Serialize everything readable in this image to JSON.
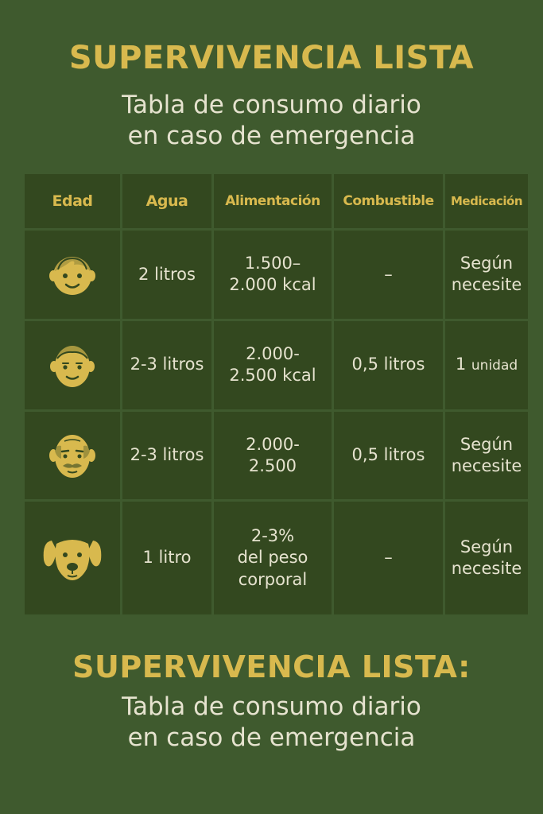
{
  "header": {
    "title": "SUPERVIVENCIA LISTA",
    "subtitle": "Tabla de consumo diario\nen caso de emergencia"
  },
  "table": {
    "columns": [
      "Edad",
      "Agua",
      "Alimentación",
      "Combustible",
      "Medicación"
    ],
    "rows": [
      {
        "icon": "child-face-icon",
        "agua": "2 litros",
        "alimentacion": "1.500–\n2.000 kcal",
        "combustible": "–",
        "medicacion": "Según\nnecesite"
      },
      {
        "icon": "adult-face-icon",
        "agua": "2-3 litros",
        "alimentacion": "2.000-\n2.500 kcal",
        "combustible": "0,5 litros",
        "medicacion_num": "1",
        "medicacion_unit": "unidad"
      },
      {
        "icon": "elderly-face-icon",
        "agua": "2-3 litros",
        "alimentacion": "2.000-\n2.500",
        "combustible": "0,5 litros",
        "medicacion": "Según\nnecesite"
      },
      {
        "icon": "dog-face-icon",
        "agua": "1 litro",
        "alimentacion": "2-3%\ndel peso\ncorporal",
        "combustible": "–",
        "medicacion": "Según\nnecesite"
      }
    ]
  },
  "footer": {
    "title": "SUPERVIVENCIA LISTA:",
    "subtitle": "Tabla de consumo diario\nen caso de emergencia"
  },
  "colors": {
    "background": "#3f5a2e",
    "cell": "#33481f",
    "gold": "#d8b94e",
    "text": "#e6e3cf"
  }
}
